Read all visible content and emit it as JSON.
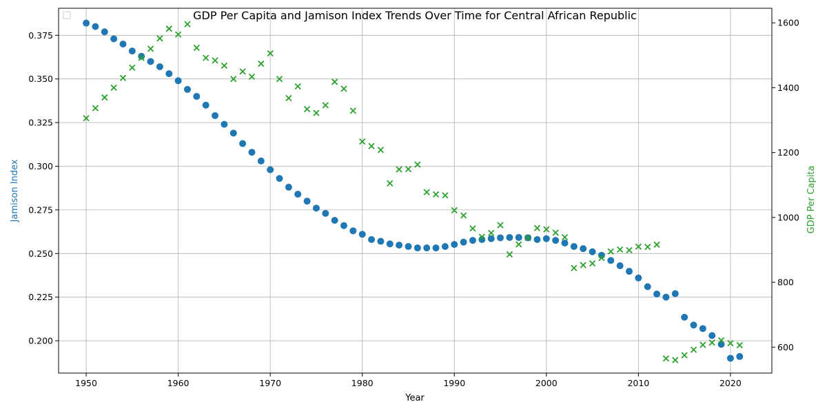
{
  "chart_data": {
    "type": "scatter",
    "title": "GDP Per Capita and Jamison Index Trends Over Time for Central African Republic",
    "xlabel": "Year",
    "ylabel_left": "Jamison Index",
    "ylabel_right": "GDP Per Capita",
    "xlim": [
      1947,
      2024.5
    ],
    "ylim_left": [
      0.1815,
      0.3905
    ],
    "ylim_right": [
      520,
      1645
    ],
    "x_ticks": [
      1950,
      1960,
      1970,
      1980,
      1990,
      2000,
      2010,
      2020
    ],
    "y_left_ticks": [
      0.2,
      0.225,
      0.25,
      0.275,
      0.3,
      0.325,
      0.35,
      0.375
    ],
    "y_right_ticks": [
      600,
      800,
      1000,
      1200,
      1400,
      1600
    ],
    "grid": true,
    "legend_position": "top-left",
    "colors": {
      "jamison": "#1f77b4",
      "gdp": "#2ca02c"
    },
    "series": [
      {
        "axis": "left",
        "marker": "circle",
        "x": [
          1950,
          1951,
          1952,
          1953,
          1954,
          1955,
          1956,
          1957,
          1958,
          1959,
          1960,
          1961,
          1962,
          1963,
          1964,
          1965,
          1966,
          1967,
          1968,
          1969,
          1970,
          1971,
          1972,
          1973,
          1974,
          1975,
          1976,
          1977,
          1978,
          1979,
          1980,
          1981,
          1982,
          1983,
          1984,
          1985,
          1986,
          1987,
          1988,
          1989,
          1990,
          1991,
          1992,
          1993,
          1994,
          1995,
          1996,
          1997,
          1998,
          1999,
          2000,
          2001,
          2002,
          2003,
          2004,
          2005,
          2006,
          2007,
          2008,
          2009,
          2010,
          2011,
          2012,
          2013,
          2014,
          2015,
          2016,
          2017,
          2018,
          2019,
          2020,
          2021
        ],
        "values": [
          0.382,
          0.38,
          0.377,
          0.373,
          0.37,
          0.366,
          0.363,
          0.36,
          0.357,
          0.353,
          0.349,
          0.344,
          0.34,
          0.335,
          0.329,
          0.324,
          0.319,
          0.313,
          0.308,
          0.303,
          0.298,
          0.293,
          0.288,
          0.284,
          0.28,
          0.276,
          0.273,
          0.269,
          0.266,
          0.263,
          0.261,
          0.258,
          0.257,
          0.2555,
          0.2548,
          0.254,
          0.2532,
          0.2532,
          0.2532,
          0.254,
          0.2552,
          0.2565,
          0.2575,
          0.258,
          0.2585,
          0.259,
          0.2592,
          0.2592,
          0.259,
          0.258,
          0.2585,
          0.2575,
          0.256,
          0.254,
          0.2528,
          0.251,
          0.249,
          0.246,
          0.243,
          0.2398,
          0.236,
          0.231,
          0.2268,
          0.225,
          0.227,
          0.2135,
          0.209,
          0.207,
          0.203,
          0.198,
          0.19,
          0.191
        ]
      },
      {
        "axis": "right",
        "marker": "x",
        "x": [
          1950,
          1951,
          1952,
          1953,
          1954,
          1955,
          1956,
          1957,
          1958,
          1959,
          1960,
          1961,
          1962,
          1963,
          1964,
          1965,
          1966,
          1967,
          1968,
          1969,
          1970,
          1971,
          1972,
          1973,
          1974,
          1975,
          1976,
          1977,
          1978,
          1979,
          1980,
          1981,
          1982,
          1983,
          1984,
          1985,
          1986,
          1987,
          1988,
          1989,
          1990,
          1991,
          1992,
          1993,
          1994,
          1995,
          1996,
          1997,
          1998,
          1999,
          2000,
          2001,
          2002,
          2003,
          2004,
          2005,
          2006,
          2007,
          2008,
          2009,
          2010,
          2011,
          2012,
          2013,
          2014,
          2015,
          2016,
          2017,
          2018,
          2019,
          2020,
          2021
        ],
        "values": [
          1306,
          1337,
          1370,
          1400,
          1430,
          1462,
          1492,
          1520,
          1552,
          1582,
          1564,
          1596,
          1523,
          1492,
          1484,
          1468,
          1427,
          1450,
          1434,
          1474,
          1506,
          1427,
          1368,
          1404,
          1334,
          1322,
          1346,
          1418,
          1397,
          1329,
          1234,
          1220,
          1208,
          1105,
          1148,
          1149,
          1163,
          1078,
          1071,
          1068,
          1022,
          1006,
          966,
          940,
          952,
          976,
          886,
          917,
          937,
          967,
          963,
          953,
          939,
          844,
          853,
          858,
          875,
          895,
          901,
          899,
          910,
          909,
          916,
          565,
          560,
          575,
          592,
          607,
          614,
          621,
          612,
          606
        ]
      }
    ]
  }
}
